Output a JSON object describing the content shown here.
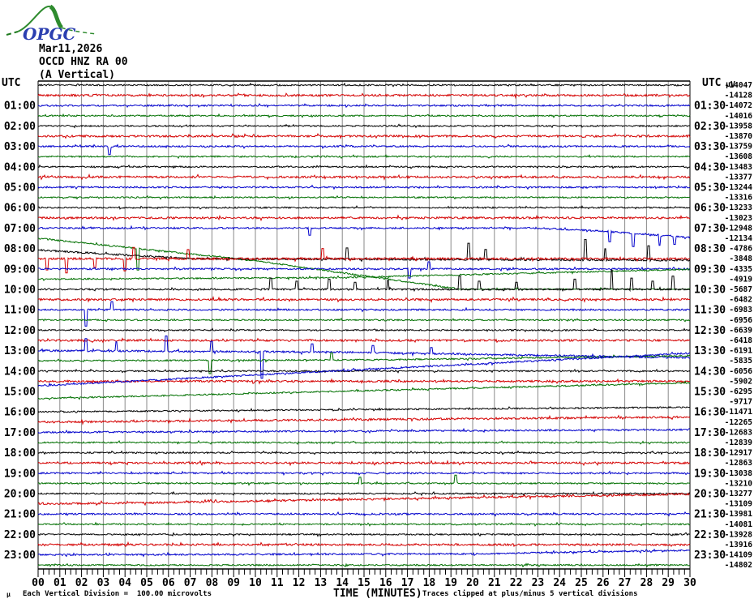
{
  "header": {
    "logo_text": "OPGC",
    "date": "Mar11,2026",
    "station": "OCCD HNZ RA 00",
    "component": "(A Vertical)"
  },
  "axis_left": {
    "title": "UTC"
  },
  "axis_right": {
    "title": "UTC",
    "unit": "µV"
  },
  "x_axis": {
    "title": "TIME (MINUTES)",
    "minute_labels": [
      "00",
      "01",
      "02",
      "03",
      "04",
      "05",
      "06",
      "07",
      "08",
      "09",
      "10",
      "11",
      "12",
      "13",
      "14",
      "15",
      "16",
      "17",
      "18",
      "19",
      "20",
      "21",
      "22",
      "23",
      "24",
      "25",
      "26",
      "27",
      "28",
      "29",
      "30"
    ]
  },
  "footer": {
    "mu": "µ",
    "scale_note": "Each Vertical Division =  100.00 microvolts",
    "clip_note": "Traces clipped at plus/minus 5 vertical divisions"
  },
  "colors": {
    "black": "#000000",
    "red": "#d40000",
    "blue": "#0000cc",
    "green": "#007000",
    "grid": "#8a8a8a"
  },
  "chart_data": {
    "type": "line",
    "subtype": "helicorder",
    "x_range_minutes": [
      0,
      30
    ],
    "minutes_per_row": 30,
    "division_microvolts": 100.0,
    "clip_divisions": 5,
    "rows": [
      {
        "start": "00:00",
        "color": "black",
        "value": -14047,
        "left_label": "",
        "right_label": "",
        "noise": 0.9
      },
      {
        "start": "00:30",
        "color": "red",
        "value": -14128,
        "left_label": "",
        "right_label": "",
        "noise": 1.25
      },
      {
        "start": "01:00",
        "color": "blue",
        "value": -14072,
        "left_label": "01:00",
        "right_label": "01:30",
        "noise": 1.0
      },
      {
        "start": "01:30",
        "color": "green",
        "value": -14016,
        "left_label": "",
        "right_label": "",
        "noise": 0.9
      },
      {
        "start": "02:00",
        "color": "black",
        "value": -13958,
        "left_label": "02:00",
        "right_label": "02:30",
        "noise": 0.9
      },
      {
        "start": "02:30",
        "color": "red",
        "value": -13870,
        "left_label": "",
        "right_label": "",
        "noise": 1.25
      },
      {
        "start": "03:00",
        "color": "blue",
        "value": -13759,
        "left_label": "03:00",
        "right_label": "03:30",
        "noise": 1.0,
        "spikes": [
          [
            3.3,
            -0.8
          ]
        ]
      },
      {
        "start": "03:30",
        "color": "green",
        "value": -13608,
        "left_label": "",
        "right_label": "",
        "noise": 0.9
      },
      {
        "start": "04:00",
        "color": "black",
        "value": -13483,
        "left_label": "04:00",
        "right_label": "04:30",
        "noise": 0.9
      },
      {
        "start": "04:30",
        "color": "red",
        "value": -13377,
        "left_label": "",
        "right_label": "",
        "noise": 1.25
      },
      {
        "start": "05:00",
        "color": "blue",
        "value": -13244,
        "left_label": "05:00",
        "right_label": "05:30",
        "noise": 1.0
      },
      {
        "start": "05:30",
        "color": "green",
        "value": -13316,
        "left_label": "",
        "right_label": "",
        "noise": 0.9
      },
      {
        "start": "06:00",
        "color": "black",
        "value": -13233,
        "left_label": "06:00",
        "right_label": "06:30",
        "noise": 0.9
      },
      {
        "start": "06:30",
        "color": "red",
        "value": -13023,
        "left_label": "",
        "right_label": "",
        "noise": 1.25
      },
      {
        "start": "07:00",
        "color": "blue",
        "value": -12948,
        "left_label": "07:00",
        "right_label": "07:30",
        "noise": 1.0,
        "path": [
          [
            0,
            0
          ],
          [
            23,
            0
          ],
          [
            26,
            -0.3
          ],
          [
            30,
            -0.9
          ]
        ],
        "spikes": [
          [
            12.5,
            -0.7
          ],
          [
            26.3,
            -1.0
          ],
          [
            27.4,
            -1.3
          ],
          [
            28.6,
            -1.0
          ],
          [
            29.3,
            -0.8
          ]
        ]
      },
      {
        "start": "07:30",
        "color": "green",
        "value": -12134,
        "left_label": "",
        "right_label": "",
        "noise": 0.95,
        "path": [
          [
            0,
            0
          ],
          [
            10,
            -2.2
          ],
          [
            19.5,
            -5
          ],
          [
            30,
            -5
          ]
        ],
        "spikes": [
          [
            4.6,
            -2.1
          ]
        ]
      },
      {
        "start": "08:00",
        "color": "black",
        "value": -4786,
        "left_label": "08:00",
        "right_label": "08:30",
        "noise": 1.15,
        "path": [
          [
            0,
            -0.15
          ],
          [
            7,
            -1.0
          ],
          [
            30,
            -1.15
          ]
        ],
        "spikes": [
          [
            14.2,
            1.1
          ],
          [
            19.8,
            1.6
          ],
          [
            20.6,
            1.0
          ],
          [
            25.2,
            2.0
          ],
          [
            26.1,
            1.1
          ],
          [
            28.1,
            1.4
          ]
        ]
      },
      {
        "start": "08:30",
        "color": "red",
        "value": -3848,
        "left_label": "",
        "right_label": "",
        "noise": 1.3,
        "spikes": [
          [
            0.4,
            -1.1
          ],
          [
            1.3,
            -1.4
          ],
          [
            2.6,
            -0.9
          ],
          [
            4.0,
            -1.2
          ],
          [
            4.4,
            1.1
          ],
          [
            6.9,
            0.9
          ],
          [
            13.1,
            1.0
          ]
        ]
      },
      {
        "start": "09:00",
        "color": "blue",
        "value": -4335,
        "left_label": "09:00",
        "right_label": "09:30",
        "noise": 1.0,
        "spikes": [
          [
            17.1,
            -0.9
          ],
          [
            18.0,
            0.7
          ]
        ]
      },
      {
        "start": "09:30",
        "color": "green",
        "value": -4919,
        "left_label": "",
        "right_label": "",
        "noise": 0.9,
        "path": [
          [
            0,
            0
          ],
          [
            14,
            0.15
          ],
          [
            30,
            0.95
          ]
        ]
      },
      {
        "start": "10:00",
        "color": "black",
        "value": -5687,
        "left_label": "10:00",
        "right_label": "10:30",
        "noise": 1.05,
        "spikes": [
          [
            10.7,
            1.1
          ],
          [
            11.9,
            0.8
          ],
          [
            13.4,
            1.0
          ],
          [
            14.6,
            0.7
          ],
          [
            16.1,
            0.9
          ],
          [
            19.4,
            1.3
          ],
          [
            20.3,
            0.8
          ],
          [
            22.0,
            0.7
          ],
          [
            24.7,
            1.0
          ],
          [
            26.4,
            1.9
          ],
          [
            27.3,
            1.1
          ],
          [
            28.3,
            0.8
          ],
          [
            29.2,
            1.3
          ]
        ]
      },
      {
        "start": "10:30",
        "color": "red",
        "value": -6482,
        "left_label": "",
        "right_label": "",
        "noise": 1.25
      },
      {
        "start": "11:00",
        "color": "blue",
        "value": -6983,
        "left_label": "11:00",
        "right_label": "11:30",
        "noise": 1.0,
        "spikes": [
          [
            2.2,
            -1.6
          ],
          [
            3.4,
            0.8
          ]
        ]
      },
      {
        "start": "11:30",
        "color": "green",
        "value": -6956,
        "left_label": "",
        "right_label": "",
        "noise": 0.9
      },
      {
        "start": "12:00",
        "color": "black",
        "value": -6639,
        "left_label": "12:00",
        "right_label": "12:30",
        "noise": 0.9
      },
      {
        "start": "12:30",
        "color": "red",
        "value": -6418,
        "left_label": "",
        "right_label": "",
        "noise": 1.2
      },
      {
        "start": "13:00",
        "color": "blue",
        "value": -6191,
        "left_label": "13:00",
        "right_label": "13:30",
        "noise": 1.15,
        "path": [
          [
            0,
            0
          ],
          [
            14,
            -0.15
          ],
          [
            30,
            -0.7
          ]
        ],
        "spikes": [
          [
            2.2,
            1.2
          ],
          [
            3.6,
            0.9
          ],
          [
            5.9,
            1.5
          ],
          [
            8.0,
            1.0
          ],
          [
            10.3,
            -2.6
          ],
          [
            12.6,
            0.8
          ],
          [
            15.4,
            0.7
          ],
          [
            18.1,
            0.6
          ]
        ]
      },
      {
        "start": "13:30",
        "color": "green",
        "value": -5835,
        "left_label": "",
        "right_label": "",
        "noise": 0.9,
        "path": [
          [
            0,
            0
          ],
          [
            16,
            0.1
          ],
          [
            30,
            0.5
          ]
        ],
        "spikes": [
          [
            7.9,
            -1.3
          ],
          [
            13.5,
            0.7
          ]
        ]
      },
      {
        "start": "14:00",
        "color": "black",
        "value": -6056,
        "left_label": "14:00",
        "right_label": "14:30",
        "noise": 0.9
      },
      {
        "start": "14:30",
        "color": "red",
        "value": -5902,
        "left_label": "",
        "right_label": "",
        "noise": 1.2
      },
      {
        "start": "15:00",
        "color": "blue",
        "value": -6295,
        "left_label": "15:00",
        "right_label": "15:30",
        "noise": 1.0,
        "path": [
          [
            0,
            0.55
          ],
          [
            30,
            3.75
          ]
        ]
      },
      {
        "start": "15:30",
        "color": "green",
        "value": -9717,
        "left_label": "",
        "right_label": "",
        "noise": 0.9,
        "path": [
          [
            0,
            0.3
          ],
          [
            30,
            1.85
          ]
        ]
      },
      {
        "start": "16:00",
        "color": "black",
        "value": -11471,
        "left_label": "16:00",
        "right_label": "16:30",
        "noise": 0.9,
        "path": [
          [
            0,
            0
          ],
          [
            30,
            0.45
          ]
        ]
      },
      {
        "start": "16:30",
        "color": "red",
        "value": -12265,
        "left_label": "",
        "right_label": "",
        "noise": 1.2,
        "path": [
          [
            0,
            0
          ],
          [
            30,
            0.5
          ]
        ]
      },
      {
        "start": "17:00",
        "color": "blue",
        "value": -12683,
        "left_label": "17:00",
        "right_label": "17:30",
        "noise": 1.0,
        "path": [
          [
            0,
            0
          ],
          [
            30,
            0.25
          ]
        ]
      },
      {
        "start": "17:30",
        "color": "green",
        "value": -12839,
        "left_label": "",
        "right_label": "",
        "noise": 0.9
      },
      {
        "start": "18:00",
        "color": "black",
        "value": -12917,
        "left_label": "18:00",
        "right_label": "18:30",
        "noise": 0.9
      },
      {
        "start": "18:30",
        "color": "red",
        "value": -12863,
        "left_label": "",
        "right_label": "",
        "noise": 1.2
      },
      {
        "start": "19:00",
        "color": "blue",
        "value": -13038,
        "left_label": "19:00",
        "right_label": "19:30",
        "noise": 1.0
      },
      {
        "start": "19:30",
        "color": "green",
        "value": -13210,
        "left_label": "",
        "right_label": "",
        "noise": 0.9,
        "spikes": [
          [
            14.8,
            0.6
          ],
          [
            19.2,
            0.8
          ]
        ]
      },
      {
        "start": "20:00",
        "color": "black",
        "value": -13277,
        "left_label": "20:00",
        "right_label": "20:30",
        "noise": 0.9
      },
      {
        "start": "20:30",
        "color": "red",
        "value": -13109,
        "left_label": "",
        "right_label": "",
        "noise": 1.2,
        "path": [
          [
            0,
            0
          ],
          [
            5,
            0.1
          ],
          [
            30,
            0.95
          ]
        ]
      },
      {
        "start": "21:00",
        "color": "blue",
        "value": -13981,
        "left_label": "21:00",
        "right_label": "21:30",
        "noise": 1.0
      },
      {
        "start": "21:30",
        "color": "green",
        "value": -14081,
        "left_label": "",
        "right_label": "",
        "noise": 0.9
      },
      {
        "start": "22:00",
        "color": "black",
        "value": -13928,
        "left_label": "22:00",
        "right_label": "22:30",
        "noise": 0.9
      },
      {
        "start": "22:30",
        "color": "red",
        "value": -13916,
        "left_label": "",
        "right_label": "",
        "noise": 1.2
      },
      {
        "start": "23:00",
        "color": "blue",
        "value": -14109,
        "left_label": "23:00",
        "right_label": "23:30",
        "noise": 1.0,
        "path": [
          [
            0,
            0
          ],
          [
            20,
            0.1
          ],
          [
            30,
            0.45
          ]
        ]
      },
      {
        "start": "23:30",
        "color": "green",
        "value": -14802,
        "left_label": "",
        "right_label": "",
        "noise": 0.9
      }
    ]
  }
}
